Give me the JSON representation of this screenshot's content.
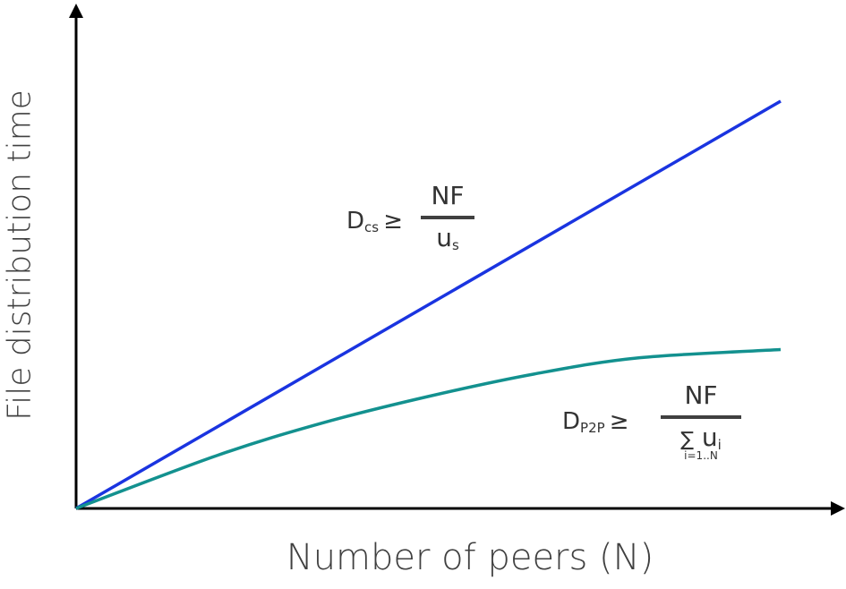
{
  "chart_data": {
    "type": "line",
    "xlabel": "Number of peers (N)",
    "ylabel": "File distribution time",
    "series": [
      {
        "color": "#1a34e0",
        "x": [
          0,
          1
        ],
        "y": [
          0,
          1
        ]
      },
      {
        "color": "#13918f",
        "x": [
          0,
          0.2,
          0.35,
          0.5,
          0.65,
          0.8,
          1
        ],
        "y": [
          0,
          0.13,
          0.21,
          0.275,
          0.33,
          0.37,
          0.39
        ]
      }
    ],
    "annotations": {
      "dcs": {
        "left": "D",
        "sub": "cs",
        "rel": "≥",
        "num": "NF",
        "den": "u",
        "den_sub": "s"
      },
      "dp2p": {
        "left": "D",
        "sub": "P2P",
        "rel": "≥",
        "num": "NF",
        "den_sum": "∑",
        "den": "u",
        "den_sub": "i",
        "range": "i=1..N"
      }
    },
    "grid": false
  }
}
